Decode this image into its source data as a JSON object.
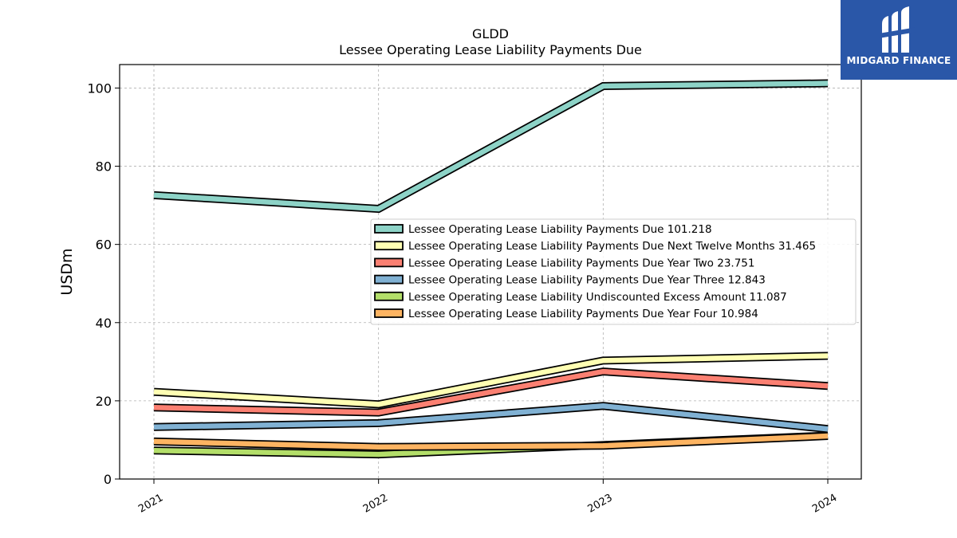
{
  "chart_data": {
    "type": "line",
    "title": "GLDD",
    "subtitle": "Lessee Operating Lease Liability Payments Due",
    "ylabel": "USDm",
    "xlabel": "",
    "x": [
      "2021",
      "2022",
      "2023",
      "2024"
    ],
    "ylim": [
      0,
      106
    ],
    "yticks": [
      "0",
      "20",
      "40",
      "60",
      "80",
      "100"
    ],
    "grid": true,
    "legend_position": "center-right",
    "series": [
      {
        "name": "Lessee Operating Lease Liability Payments Due  101.218",
        "values": [
          72.6,
          69.1,
          100.5,
          101.2
        ],
        "color": "#8dd3c7"
      },
      {
        "name": "Lessee Operating Lease Liability Payments Due Next Twelve Months  31.465",
        "values": [
          22.3,
          19.1,
          30.3,
          31.5
        ],
        "color": "#ffffb3"
      },
      {
        "name": "Lessee Operating Lease Liability Payments Due Year Two  23.751",
        "values": [
          18.3,
          17.0,
          27.5,
          23.8
        ],
        "color": "#fb8072"
      },
      {
        "name": "Lessee Operating Lease Liability Payments Due Year Three  12.843",
        "values": [
          13.3,
          14.3,
          18.7,
          12.8
        ],
        "color": "#80b1d3"
      },
      {
        "name": "Lessee Operating Lease Liability Undiscounted Excess Amount  11.087",
        "values": [
          7.3,
          6.3,
          8.7,
          11.1
        ],
        "color": "#b3de69"
      },
      {
        "name": "Lessee Operating Lease Liability Payments Due Year Four  10.984",
        "values": [
          9.6,
          8.2,
          8.5,
          11.0
        ],
        "color": "#fdb462"
      }
    ]
  },
  "logo": {
    "text": "MIDGARD FINANCE",
    "color": "#2a57a8"
  }
}
